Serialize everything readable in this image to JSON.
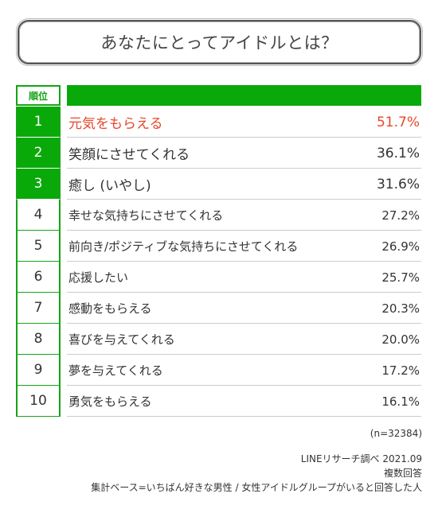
{
  "title": "あなたにとってアイドルとは？",
  "header": {
    "rank_label": "順位"
  },
  "chart_data": {
    "type": "table",
    "title": "あなたにとってアイドルとは？",
    "rows": [
      {
        "rank": "1",
        "label": "元気をもらえる",
        "value": "51.7%"
      },
      {
        "rank": "2",
        "label": "笑顔にさせてくれる",
        "value": "36.1%"
      },
      {
        "rank": "3",
        "label": "癒し (いやし)",
        "value": "31.6%"
      },
      {
        "rank": "4",
        "label": "幸せな気持ちにさせてくれる",
        "value": "27.2%"
      },
      {
        "rank": "5",
        "label": "前向き/ポジティブな気持ちにさせてくれる",
        "value": "26.9%"
      },
      {
        "rank": "6",
        "label": "応援したい",
        "value": "25.7%"
      },
      {
        "rank": "7",
        "label": "感動をもらえる",
        "value": "20.3%"
      },
      {
        "rank": "8",
        "label": "喜びを与えてくれる",
        "value": "20.0%"
      },
      {
        "rank": "9",
        "label": "夢を与えてくれる",
        "value": "17.2%"
      },
      {
        "rank": "10",
        "label": "勇気をもらえる",
        "value": "16.1%"
      }
    ],
    "highlight_color": "#e8462a",
    "accent_color": "#0aa90a"
  },
  "notes": {
    "sample": "(n=32384)",
    "source": "LINEリサーチ調べ 2021.09",
    "method": "複数回答",
    "base": "集計ベース=いちばん好きな男性 / 女性アイドルグループがいると回答した人"
  }
}
